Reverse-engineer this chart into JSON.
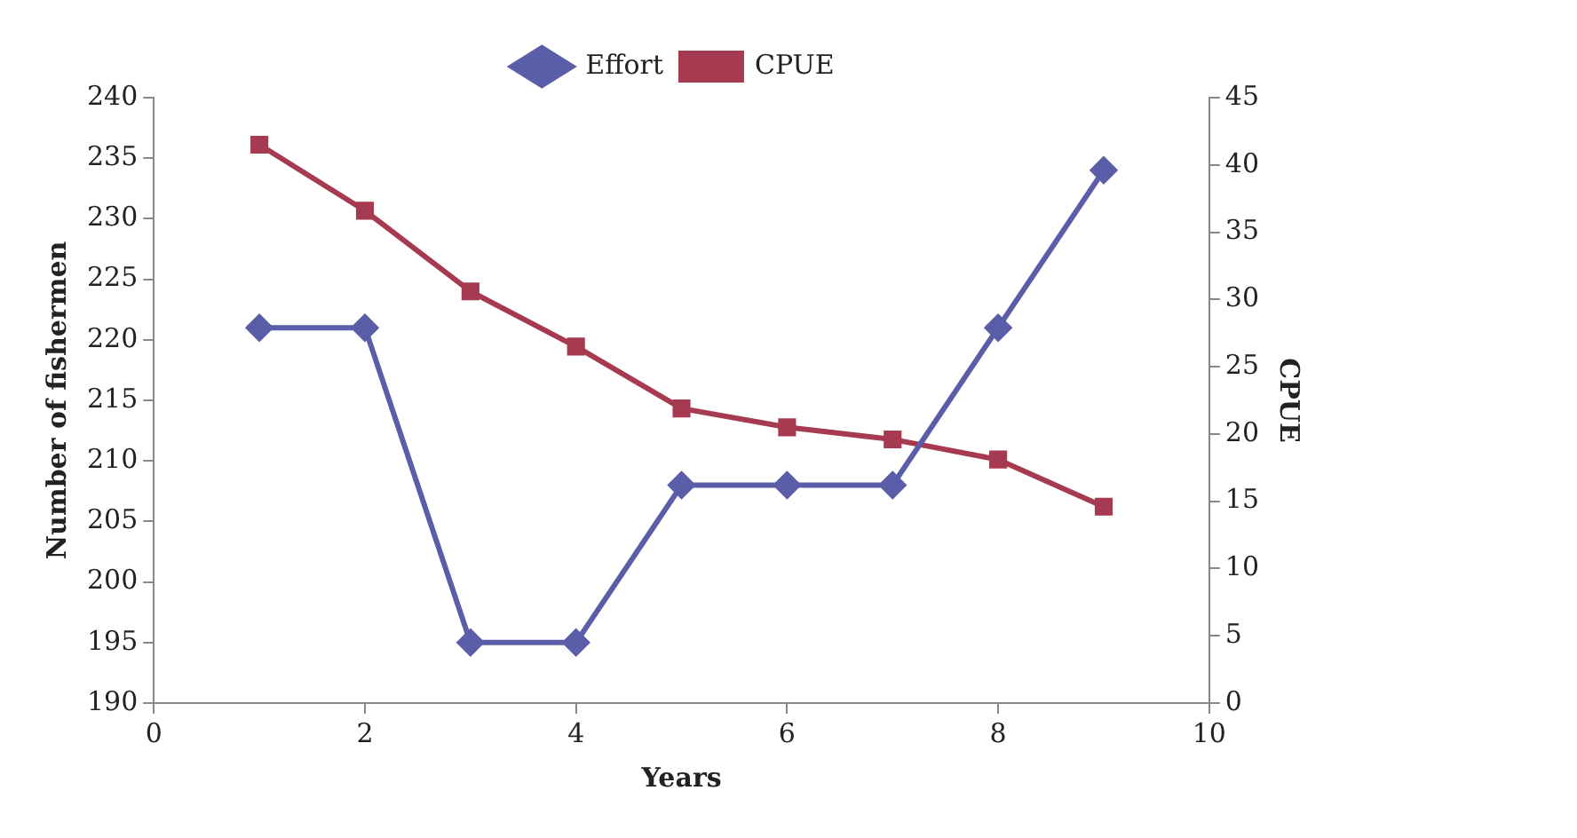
{
  "chart_data": {
    "type": "line",
    "xlabel": "Years",
    "ylabel": "Number of fishermen",
    "y2label": "CPUE",
    "x": [
      1,
      2,
      3,
      4,
      5,
      6,
      7,
      8,
      9
    ],
    "xlim": [
      0,
      10
    ],
    "xticks": [
      0,
      2,
      4,
      6,
      8,
      10
    ],
    "ylim": [
      190,
      240
    ],
    "yticks": [
      190,
      195,
      200,
      205,
      210,
      215,
      220,
      225,
      230,
      235,
      240
    ],
    "y2lim": [
      0,
      45
    ],
    "y2ticks": [
      0,
      5,
      10,
      15,
      20,
      25,
      30,
      35,
      40,
      45
    ],
    "series": [
      {
        "name": "Effort",
        "color": "#5a5ea8",
        "marker": "diamond",
        "values": [
          221,
          221,
          195,
          195,
          208,
          208,
          208,
          221,
          234
        ]
      },
      {
        "name": "CPUE",
        "color": "#a63a50",
        "marker": "square",
        "axis": "y2",
        "values": [
          41.5,
          36.6,
          30.6,
          26.5,
          21.9,
          20.5,
          19.6,
          18.1,
          14.6
        ]
      }
    ],
    "legend": "top",
    "grid": false,
    "line_style": "solid"
  }
}
